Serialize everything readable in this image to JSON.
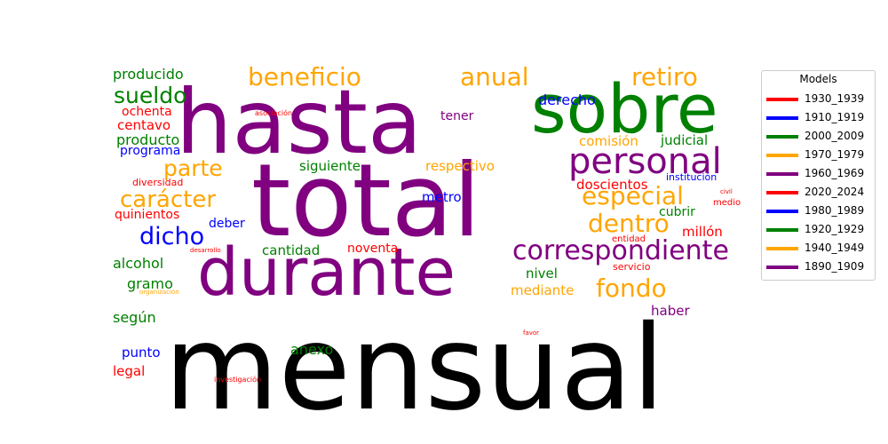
{
  "chart_data": {
    "type": "wordcloud",
    "legend": {
      "title": "Models",
      "placement": "right",
      "entries": [
        {
          "label": "1930_1939",
          "color": "#ff0000"
        },
        {
          "label": "1910_1919",
          "color": "#0000ff"
        },
        {
          "label": "2000_2009",
          "color": "#008000"
        },
        {
          "label": "1970_1979",
          "color": "#ffa500"
        },
        {
          "label": "1960_1969",
          "color": "#800080"
        },
        {
          "label": "2020_2024",
          "color": "#ff0000"
        },
        {
          "label": "1980_1989",
          "color": "#0000ff"
        },
        {
          "label": "1920_1929",
          "color": "#008000"
        },
        {
          "label": "1940_1949",
          "color": "#ffa500"
        },
        {
          "label": "1890_1909",
          "color": "#800080"
        }
      ]
    },
    "words": [
      {
        "text": "mensual",
        "color": "#000000",
        "weight": 132
      },
      {
        "text": "total",
        "color": "#800080",
        "weight": 113
      },
      {
        "text": "hasta",
        "color": "#800080",
        "weight": 100
      },
      {
        "text": "sobre",
        "color": "#008000",
        "weight": 76
      },
      {
        "text": "durante",
        "color": "#800080",
        "weight": 74
      },
      {
        "text": "personal",
        "color": "#800080",
        "weight": 40
      },
      {
        "text": "correspondiente",
        "color": "#800080",
        "weight": 30
      },
      {
        "text": "beneficio",
        "color": "#ffa500",
        "weight": 28
      },
      {
        "text": "retiro",
        "color": "#ffa500",
        "weight": 28
      },
      {
        "text": "anual",
        "color": "#ffa500",
        "weight": 28
      },
      {
        "text": "especial",
        "color": "#ffa500",
        "weight": 28
      },
      {
        "text": "dentro",
        "color": "#ffa500",
        "weight": 28
      },
      {
        "text": "fondo",
        "color": "#ffa500",
        "weight": 28
      },
      {
        "text": "carácter",
        "color": "#ffa500",
        "weight": 26
      },
      {
        "text": "parte",
        "color": "#ffa500",
        "weight": 25
      },
      {
        "text": "sueldo",
        "color": "#008000",
        "weight": 25
      },
      {
        "text": "dicho",
        "color": "#0000ff",
        "weight": 27
      },
      {
        "text": "producido",
        "color": "#008000",
        "weight": 16
      },
      {
        "text": "producto",
        "color": "#008000",
        "weight": 16
      },
      {
        "text": "alcohol",
        "color": "#008000",
        "weight": 16
      },
      {
        "text": "gramo",
        "color": "#008000",
        "weight": 16
      },
      {
        "text": "según",
        "color": "#008000",
        "weight": 16
      },
      {
        "text": "anexo",
        "color": "#008000",
        "weight": 16
      },
      {
        "text": "siguiente",
        "color": "#008000",
        "weight": 15
      },
      {
        "text": "cantidad",
        "color": "#008000",
        "weight": 15
      },
      {
        "text": "nivel",
        "color": "#008000",
        "weight": 15
      },
      {
        "text": "cubrir",
        "color": "#008000",
        "weight": 14
      },
      {
        "text": "judicial",
        "color": "#008000",
        "weight": 15
      },
      {
        "text": "ochenta",
        "color": "#ff0000",
        "weight": 14
      },
      {
        "text": "centavo",
        "color": "#ff0000",
        "weight": 15
      },
      {
        "text": "quinientos",
        "color": "#ff0000",
        "weight": 14
      },
      {
        "text": "noventa",
        "color": "#ff0000",
        "weight": 14
      },
      {
        "text": "doscientos",
        "color": "#ff0000",
        "weight": 15
      },
      {
        "text": "millón",
        "color": "#ff0000",
        "weight": 15
      },
      {
        "text": "legal",
        "color": "#ff0000",
        "weight": 15
      },
      {
        "text": "diversidad",
        "color": "#ff0000",
        "weight": 11
      },
      {
        "text": "asociación",
        "color": "#ff0000",
        "weight": 8
      },
      {
        "text": "desarrollo",
        "color": "#ff0000",
        "weight": 7
      },
      {
        "text": "entidad",
        "color": "#ff0000",
        "weight": 10
      },
      {
        "text": "servicio",
        "color": "#ff0000",
        "weight": 11
      },
      {
        "text": "civil",
        "color": "#ff0000",
        "weight": 7
      },
      {
        "text": "medio",
        "color": "#ff0000",
        "weight": 10
      },
      {
        "text": "favor",
        "color": "#ff0000",
        "weight": 7
      },
      {
        "text": "investigación",
        "color": "#ff0000",
        "weight": 8
      },
      {
        "text": "derecho",
        "color": "#0000ff",
        "weight": 16
      },
      {
        "text": "programa",
        "color": "#0000ff",
        "weight": 14
      },
      {
        "text": "deber",
        "color": "#0000ff",
        "weight": 14
      },
      {
        "text": "metro",
        "color": "#0000ff",
        "weight": 15
      },
      {
        "text": "punto",
        "color": "#0000ff",
        "weight": 15
      },
      {
        "text": "institución",
        "color": "#0000ff",
        "weight": 11
      },
      {
        "text": "tener",
        "color": "#800080",
        "weight": 14
      },
      {
        "text": "haber",
        "color": "#800080",
        "weight": 15
      },
      {
        "text": "comisión",
        "color": "#ffa500",
        "weight": 15
      },
      {
        "text": "respectivo",
        "color": "#ffa500",
        "weight": 15
      },
      {
        "text": "mediante",
        "color": "#ffa500",
        "weight": 15
      },
      {
        "text": "organización",
        "color": "#ffa500",
        "weight": 7
      }
    ]
  }
}
